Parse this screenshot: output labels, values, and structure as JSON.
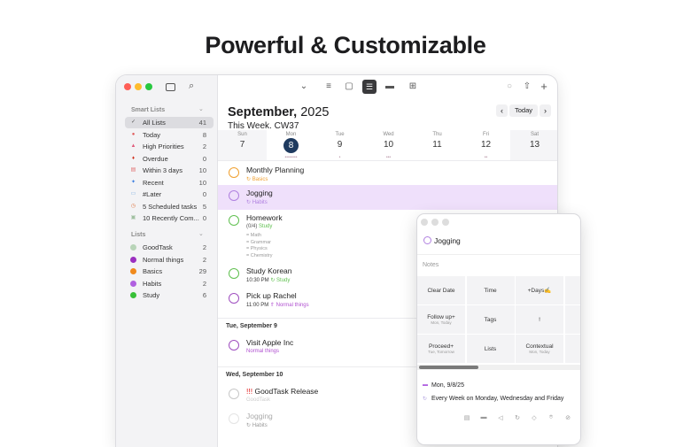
{
  "headline": "Powerful & Customizable",
  "sidebar": {
    "smart_header": "Smart Lists",
    "smart": [
      {
        "label": "All Lists",
        "count": "41",
        "icon": "check-circle-icon",
        "color": "#555"
      },
      {
        "label": "Today",
        "count": "8",
        "icon": "today-icon",
        "color": "#e05a5a"
      },
      {
        "label": "High Priorities",
        "count": "2",
        "icon": "warning-icon",
        "color": "#e05a7a"
      },
      {
        "label": "Overdue",
        "count": "0",
        "icon": "flame-icon",
        "color": "#d0301c"
      },
      {
        "label": "Within 3 days",
        "count": "10",
        "icon": "calendar-icon",
        "color": "#e07070"
      },
      {
        "label": "Recent",
        "count": "10",
        "icon": "sparkle-icon",
        "color": "#3a7ee0"
      },
      {
        "label": "#Later",
        "count": "0",
        "icon": "tray-icon",
        "color": "#80b0e0"
      },
      {
        "label": "5 Scheduled tasks",
        "count": "5",
        "icon": "clock-icon",
        "color": "#e08050"
      },
      {
        "label": "10 Recently Com...",
        "count": "0",
        "icon": "completed-icon",
        "color": "#a0c0a0"
      }
    ],
    "lists_header": "Lists",
    "lists": [
      {
        "label": "GoodTask",
        "count": "2",
        "color": "#b8d4b8"
      },
      {
        "label": "Normal things",
        "count": "2",
        "color": "#9b30c0"
      },
      {
        "label": "Basics",
        "count": "29",
        "color": "#f08a1c"
      },
      {
        "label": "Habits",
        "count": "2",
        "color": "#b060e0"
      },
      {
        "label": "Study",
        "count": "6",
        "color": "#38c038"
      }
    ]
  },
  "header": {
    "month": "September,",
    "year": "2025",
    "week": "This Week. CW37",
    "today": "Today"
  },
  "week": [
    {
      "name": "Sun",
      "num": "7",
      "weekend": true
    },
    {
      "name": "Mon",
      "num": "8",
      "selected": true,
      "dots": "••••••••"
    },
    {
      "name": "Tue",
      "num": "9",
      "dots": "•"
    },
    {
      "name": "Wed",
      "num": "10",
      "dots": "•••"
    },
    {
      "name": "Thu",
      "num": "11"
    },
    {
      "name": "Fri",
      "num": "12",
      "dots": "••"
    },
    {
      "name": "Sat",
      "num": "13",
      "weekend": true
    }
  ],
  "tasks": [
    {
      "title": "Monthly Planning",
      "sub": "↻ Basics",
      "color": "#f0a030",
      "subcolor": "#f0a030"
    },
    {
      "title": "Jogging",
      "sub": "↻ Habits",
      "color": "#b080e0",
      "subcolor": "#b080e0",
      "highlight": true
    },
    {
      "title": "Homework",
      "sub": "(0/4)",
      "list": "Study",
      "color": "#60c050",
      "subcolor": "#555",
      "subtasks": [
        "= Math",
        "= Grammar",
        "= Physics",
        "= Chemistry"
      ]
    },
    {
      "title": "Study Korean",
      "sub": "10:30 PM",
      "list": "↻ Study",
      "color": "#60c050",
      "subcolor": "#333"
    },
    {
      "title": "Pick up Rachel",
      "sub": "11:00 PM",
      "list": "⇑ Normal things",
      "color": "#a050c0",
      "subcolor": "#333"
    }
  ],
  "sections": [
    {
      "title": "Tue, September 9",
      "tasks": [
        {
          "title": "Visit Apple Inc",
          "sub": "Normal things",
          "color": "#a050c0"
        }
      ]
    },
    {
      "title": "Wed, September 10",
      "tasks": [
        {
          "priority": "!!!",
          "title": "GoodTask Release",
          "sub": "GoodTask",
          "color": "#c8c8c8"
        },
        {
          "title": "Jogging",
          "sub": "↻ Habits",
          "color": "#e4e4e4"
        }
      ]
    }
  ],
  "popup": {
    "title": "Jogging",
    "notes": "Notes",
    "grid": [
      [
        {
          "label": "Clear Date"
        },
        {
          "label": "Time"
        },
        {
          "label": "+Days✍"
        },
        {
          "label": "T",
          "sub": "Mo"
        }
      ],
      [
        {
          "label": "Follow up+",
          "sub": "Mon, Today"
        },
        {
          "label": "Tags"
        },
        {
          "label": "!"
        },
        {
          "label": "",
          "sub": "L"
        }
      ],
      [
        {
          "label": "Proceed+",
          "sub": "Tue, Tomorrow"
        },
        {
          "label": "Lists"
        },
        {
          "label": "Contextual",
          "sub": "Mon, Today"
        },
        {
          "label": ""
        }
      ]
    ],
    "date": "Mon, 9/8/25",
    "repeat": "Every Week on Monday, Wednesday and Friday",
    "bottom_icons": [
      "calendar-icon",
      "calendar-alt-icon",
      "alarm-icon",
      "repeat-icon",
      "tag-icon",
      "location-icon",
      "attachment-icon"
    ]
  },
  "colors": {
    "accent": "#1e3a5f",
    "highlight": "#efe0fb"
  }
}
